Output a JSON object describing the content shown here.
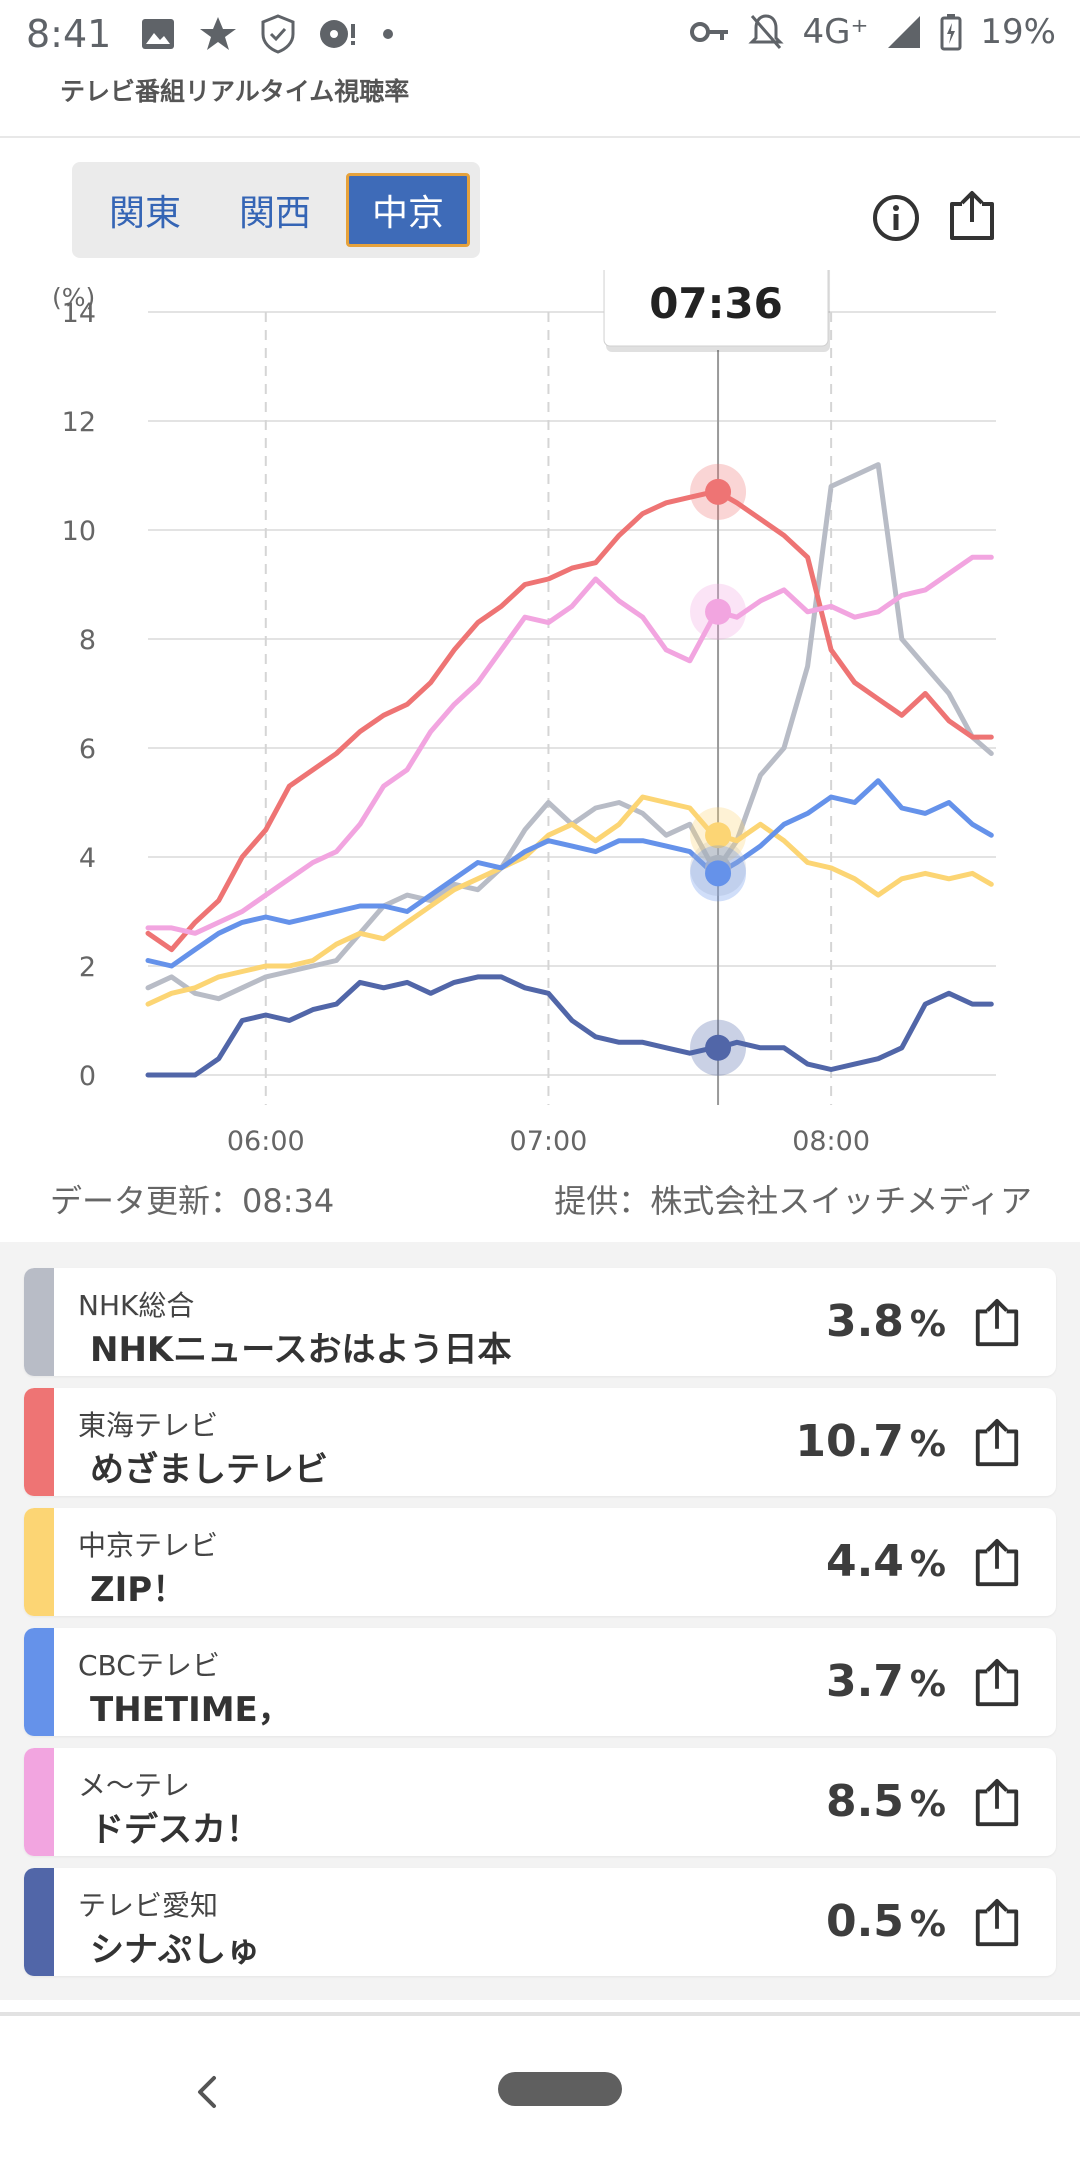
{
  "status_bar": {
    "time": "8:41",
    "network": "4G⁺",
    "battery": "19%"
  },
  "app": {
    "title": "テレビ番組リアルタイム視聴率"
  },
  "regions": {
    "tabs": [
      "関東",
      "関西",
      "中京"
    ],
    "active": "中京"
  },
  "chart_data": {
    "type": "line",
    "ylabel": "(%)",
    "ylim": [
      0,
      14
    ],
    "yticks": [
      "0",
      "2",
      "4",
      "6",
      "8",
      "10",
      "12",
      "14"
    ],
    "x_range_minutes": [
      335,
      515
    ],
    "xticks": [
      {
        "label": "06:00",
        "minute": 360
      },
      {
        "label": "07:00",
        "minute": 420
      },
      {
        "label": "08:00",
        "minute": 480
      }
    ],
    "cursor": {
      "label": "07:36",
      "minute": 456
    },
    "x": [
      335,
      340,
      345,
      350,
      355,
      360,
      365,
      370,
      375,
      380,
      385,
      390,
      395,
      400,
      405,
      410,
      415,
      420,
      425,
      430,
      435,
      440,
      445,
      450,
      455,
      456,
      460,
      465,
      470,
      475,
      480,
      485,
      490,
      495,
      500,
      505,
      510,
      514
    ],
    "series": [
      {
        "name": "NHK総合",
        "color": "#b8bcc6",
        "values": [
          1.6,
          1.8,
          1.5,
          1.4,
          1.6,
          1.8,
          1.9,
          2.0,
          2.1,
          2.6,
          3.1,
          3.3,
          3.2,
          3.5,
          3.4,
          3.8,
          4.5,
          5.0,
          4.6,
          4.9,
          5.0,
          4.8,
          4.4,
          4.6,
          3.8,
          3.8,
          4.3,
          5.5,
          6.0,
          7.5,
          10.8,
          11.0,
          11.2,
          8.0,
          7.5,
          7.0,
          6.2,
          5.9
        ]
      },
      {
        "name": "東海テレビ",
        "color": "#ee7474",
        "values": [
          2.6,
          2.3,
          2.8,
          3.2,
          4.0,
          4.5,
          5.3,
          5.6,
          5.9,
          6.3,
          6.6,
          6.8,
          7.2,
          7.8,
          8.3,
          8.6,
          9.0,
          9.1,
          9.3,
          9.4,
          9.9,
          10.3,
          10.5,
          10.6,
          10.7,
          10.7,
          10.5,
          10.2,
          9.9,
          9.5,
          7.8,
          7.2,
          6.9,
          6.6,
          7.0,
          6.5,
          6.2,
          6.2
        ]
      },
      {
        "name": "中京テレビ",
        "color": "#fcd574",
        "values": [
          1.3,
          1.5,
          1.6,
          1.8,
          1.9,
          2.0,
          2.0,
          2.1,
          2.4,
          2.6,
          2.5,
          2.8,
          3.1,
          3.4,
          3.6,
          3.8,
          4.0,
          4.4,
          4.6,
          4.3,
          4.6,
          5.1,
          5.0,
          4.9,
          4.4,
          4.4,
          4.3,
          4.6,
          4.3,
          3.9,
          3.8,
          3.6,
          3.3,
          3.6,
          3.7,
          3.6,
          3.7,
          3.5
        ]
      },
      {
        "name": "CBCテレビ",
        "color": "#6592ea",
        "values": [
          2.1,
          2.0,
          2.3,
          2.6,
          2.8,
          2.9,
          2.8,
          2.9,
          3.0,
          3.1,
          3.1,
          3.0,
          3.3,
          3.6,
          3.9,
          3.8,
          4.1,
          4.3,
          4.2,
          4.1,
          4.3,
          4.3,
          4.2,
          4.1,
          3.7,
          3.7,
          3.9,
          4.2,
          4.6,
          4.8,
          5.1,
          5.0,
          5.4,
          4.9,
          4.8,
          5.0,
          4.6,
          4.4
        ]
      },
      {
        "name": "メ〜テレ",
        "color": "#f2a5e0",
        "values": [
          2.7,
          2.7,
          2.6,
          2.8,
          3.0,
          3.3,
          3.6,
          3.9,
          4.1,
          4.6,
          5.3,
          5.6,
          6.3,
          6.8,
          7.2,
          7.8,
          8.4,
          8.3,
          8.6,
          9.1,
          8.7,
          8.4,
          7.8,
          7.6,
          8.4,
          8.5,
          8.4,
          8.7,
          8.9,
          8.5,
          8.6,
          8.4,
          8.5,
          8.8,
          8.9,
          9.2,
          9.5,
          9.5
        ]
      },
      {
        "name": "テレビ愛知",
        "color": "#5166a8",
        "values": [
          0.0,
          0.0,
          0.0,
          0.3,
          1.0,
          1.1,
          1.0,
          1.2,
          1.3,
          1.7,
          1.6,
          1.7,
          1.5,
          1.7,
          1.8,
          1.8,
          1.6,
          1.5,
          1.0,
          0.7,
          0.6,
          0.6,
          0.5,
          0.4,
          0.5,
          0.5,
          0.6,
          0.5,
          0.5,
          0.2,
          0.1,
          0.2,
          0.3,
          0.5,
          1.3,
          1.5,
          1.3,
          1.3
        ]
      }
    ]
  },
  "chart_footer": {
    "updated": "データ更新：08:34",
    "provider": "提供：株式会社スイッチメディア"
  },
  "channels": [
    {
      "channel": "NHK総合",
      "program": "NHKニュースおはよう日本",
      "rating": "3.8",
      "unit": "%",
      "color": "#b8bcc6"
    },
    {
      "channel": "東海テレビ",
      "program": "めざましテレビ",
      "rating": "10.7",
      "unit": "%",
      "color": "#ee7474"
    },
    {
      "channel": "中京テレビ",
      "program": "ZIP！",
      "rating": "4.4",
      "unit": "%",
      "color": "#fcd574"
    },
    {
      "channel": "CBCテレビ",
      "program": "THETIME，",
      "rating": "3.7",
      "unit": "%",
      "color": "#6592ea"
    },
    {
      "channel": "メ〜テレ",
      "program": "ドデスカ！",
      "rating": "8.5",
      "unit": "%",
      "color": "#f2a5e0"
    },
    {
      "channel": "テレビ愛知",
      "program": "シナぷしゅ",
      "rating": "0.5",
      "unit": "%",
      "color": "#5166a8"
    }
  ]
}
